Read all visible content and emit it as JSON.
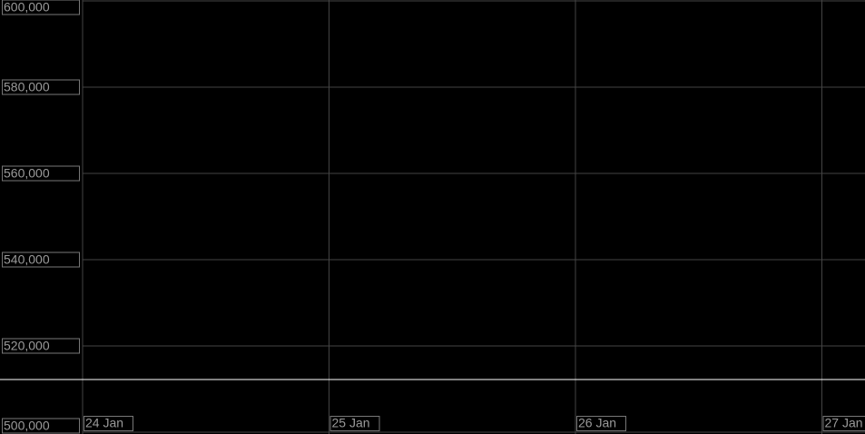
{
  "chart_data": {
    "type": "line",
    "categories": [
      "24 Jan",
      "25 Jan",
      "26 Jan",
      "27 Jan"
    ],
    "ylim": [
      500000,
      600000
    ],
    "yticks": [
      {
        "value": 500000,
        "label": "500,000"
      },
      {
        "value": 520000,
        "label": "520,000"
      },
      {
        "value": 540000,
        "label": "540,000"
      },
      {
        "value": 560000,
        "label": "560,000"
      },
      {
        "value": 580000,
        "label": "580,000"
      },
      {
        "value": 600000,
        "label": "600,000"
      }
    ],
    "grid": true,
    "grid_color": "#444444",
    "reference_line": 512200,
    "reference_line_color": "#ffffff"
  }
}
